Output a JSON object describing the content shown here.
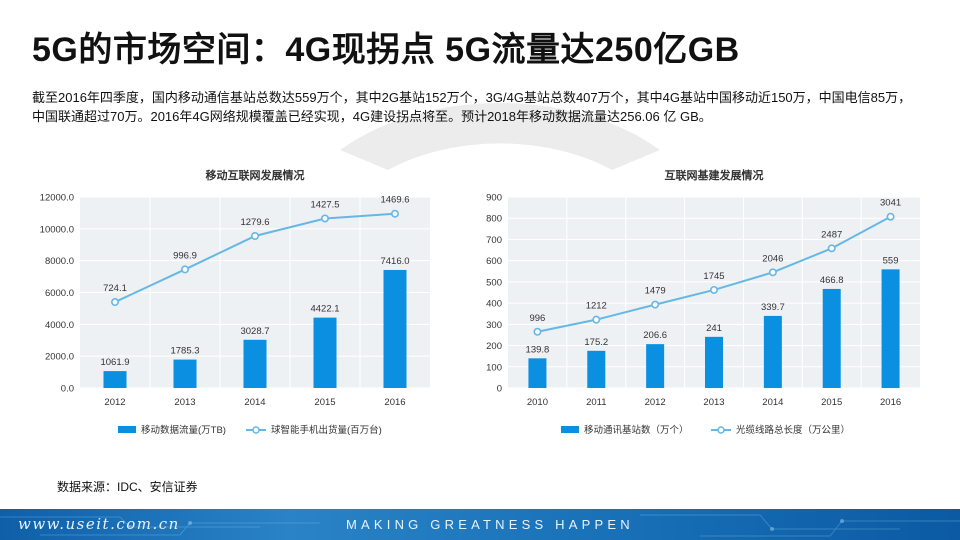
{
  "page": {
    "title": "5G的市场空间：4G现拐点 5G流量达250亿GB",
    "description": "截至2016年四季度，国内移动通信基站总数达559万个，其中2G基站152万个，3G/4G基站总数407万个，其中4G基站中国移动近150万，中国电信85万，中国联通超过70万。2016年4G网络规模覆盖已经实现，4G建设拐点将至。预计2018年移动数据流量达256.06 亿 GB。",
    "source": "数据来源：IDC、安信证券",
    "footer_url": "www.useit.com.cn",
    "footer_slogan": "MAKING GREATNESS HAPPEN"
  },
  "colors": {
    "bar": "#0b8fe0",
    "line": "#66b7e6",
    "plot_bg": "#eef1f4",
    "grid": "#ffffff",
    "text": "#333333"
  },
  "chart_data": [
    {
      "type": "bar",
      "title": "移动互联网发展情况",
      "categories": [
        "2012",
        "2013",
        "2014",
        "2015",
        "2016"
      ],
      "ylim": [
        0,
        12000
      ],
      "yticks": [
        "0.0",
        "2000.0",
        "4000.0",
        "6000.0",
        "8000.0",
        "10000.0",
        "12000.0"
      ],
      "series": [
        {
          "name": "移动数据流量(万TB)",
          "kind": "bar",
          "values": [
            1061.9,
            1785.3,
            3028.7,
            4422.1,
            7416.0
          ],
          "labels": [
            "1061.9",
            "1785.3",
            "3028.7",
            "4422.1",
            "7416.0"
          ]
        },
        {
          "name": "球智能手机出货量(百万台)",
          "kind": "line",
          "values": [
            724.1,
            996.9,
            1279.6,
            1427.5,
            1469.6
          ],
          "labels": [
            "724.1",
            "996.9",
            "1279.6",
            "1427.5",
            "1469.6"
          ],
          "plotted_as": [
            5400,
            7450,
            9550,
            10650,
            10950
          ]
        }
      ]
    },
    {
      "type": "bar",
      "title": "互联网基建发展情况",
      "categories": [
        "2010",
        "2011",
        "2012",
        "2013",
        "2014",
        "2015",
        "2016"
      ],
      "ylim": [
        0,
        900
      ],
      "yticks": [
        "0",
        "100",
        "200",
        "300",
        "400",
        "500",
        "600",
        "700",
        "800",
        "900"
      ],
      "series": [
        {
          "name": "移动通讯基站数（万个）",
          "kind": "bar",
          "values": [
            139.8,
            175.2,
            206.6,
            241,
            339.7,
            466.8,
            559
          ],
          "labels": [
            "139.8",
            "175.2",
            "206.6",
            "241",
            "339.7",
            "466.8",
            "559"
          ]
        },
        {
          "name": "光缆线路总长度（万公里）",
          "kind": "line",
          "values": [
            996,
            1212,
            1479,
            1745,
            2046,
            2487,
            3041
          ],
          "labels": [
            "996",
            "1212",
            "1479",
            "1745",
            "2046",
            "2487",
            "3041"
          ],
          "plotted_as": [
            265,
            322,
            393,
            462,
            545,
            658,
            807
          ]
        }
      ]
    }
  ]
}
